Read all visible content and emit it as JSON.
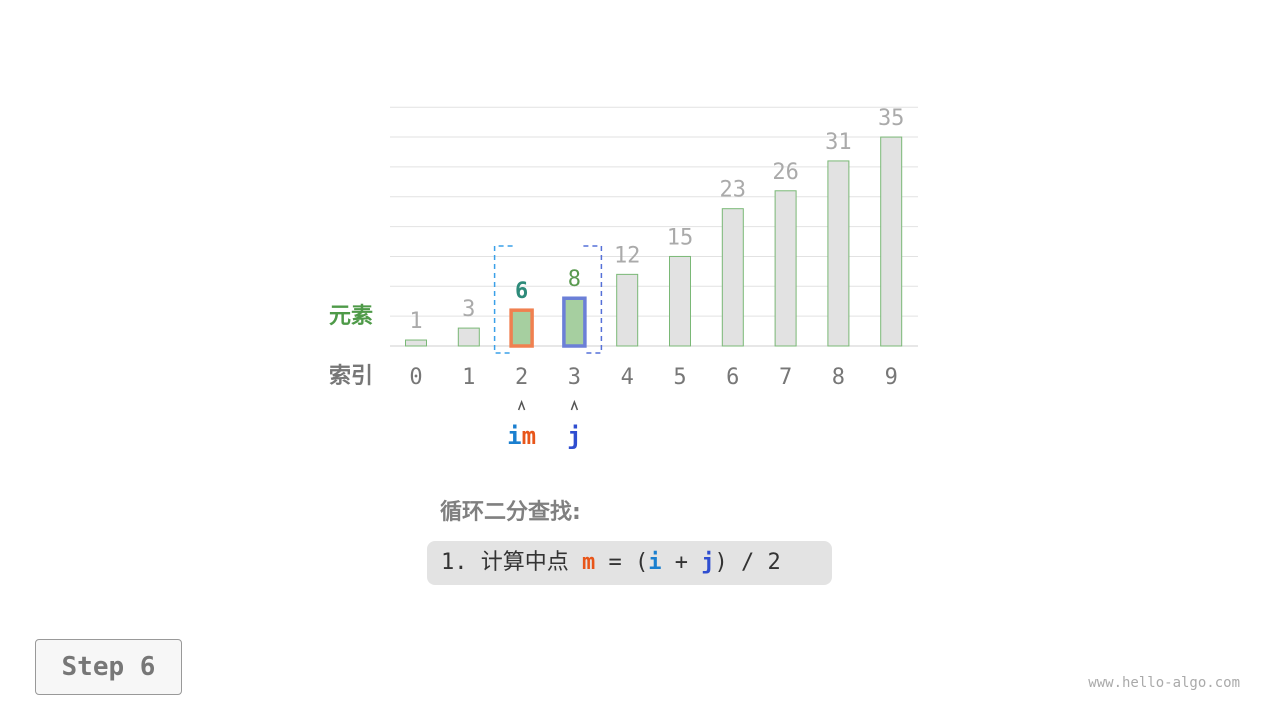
{
  "chart_data": {
    "type": "bar",
    "categories": [
      "0",
      "1",
      "2",
      "3",
      "4",
      "5",
      "6",
      "7",
      "8",
      "9"
    ],
    "values": [
      1,
      3,
      6,
      8,
      12,
      15,
      23,
      26,
      31,
      35
    ],
    "ylim": [
      0,
      40
    ],
    "grid": true,
    "row_labels": {
      "value": "元素",
      "index": "索引"
    },
    "highlight": {
      "i": 2,
      "m": 2,
      "j": 3
    }
  },
  "pointers": {
    "i": "i",
    "m": "m",
    "j": "j",
    "arrow": "^"
  },
  "colors": {
    "i": "#1a7fcf",
    "m": "#e8561a",
    "j": "#2f4ed0",
    "element_label": "#4e9a48",
    "bar_fill": "#e2e2e2",
    "bar_stroke": "#7ab876",
    "active_fill": "#a6cfa0"
  },
  "text": {
    "title": "循环二分查找:",
    "step_prefix": "1. 计算中点 ",
    "step_m": "m",
    "step_eq": " = (",
    "step_i": "i",
    "step_plus": " + ",
    "step_j": "j",
    "step_end": ") / 2",
    "step_button": "Step 6",
    "watermark": "www.hello-algo.com"
  }
}
